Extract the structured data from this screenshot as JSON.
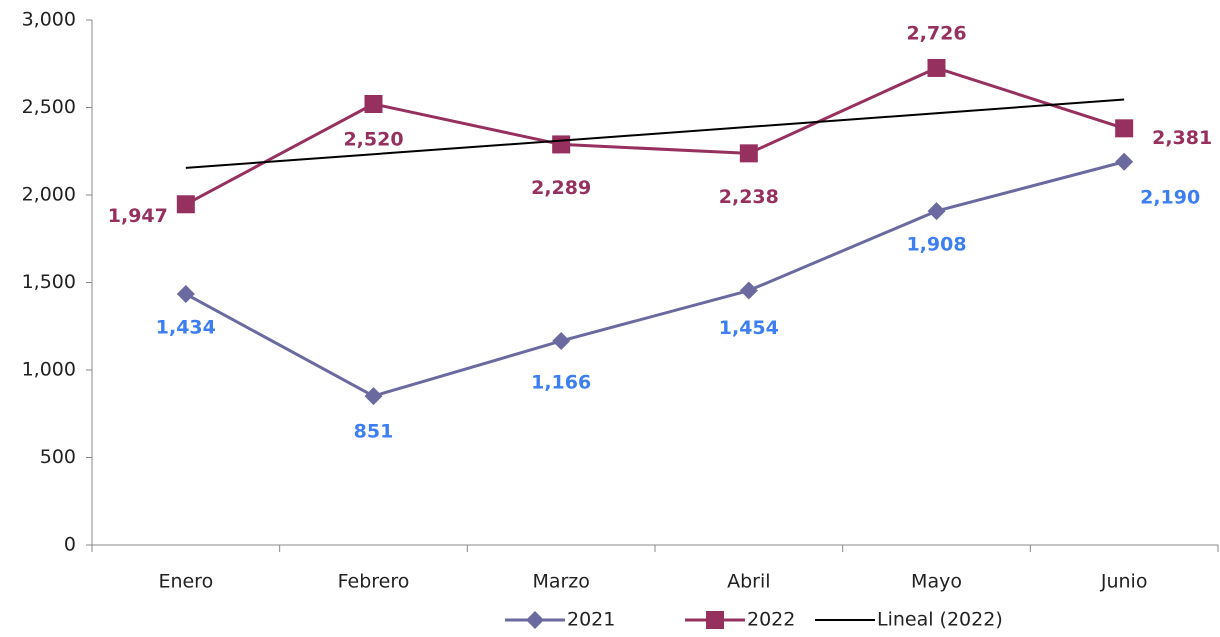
{
  "chart_data": {
    "type": "line",
    "categories": [
      "Enero",
      "Febrero",
      "Marzo",
      "Abril",
      "Mayo",
      "Junio"
    ],
    "series": [
      {
        "name": "2021",
        "color": "#6b6aa0",
        "label_color": "#3d7ef0",
        "marker": "diamond",
        "values": [
          1434,
          851,
          1166,
          1454,
          1908,
          2190
        ],
        "value_labels": [
          "1,434",
          "851",
          "1,166",
          "1,454",
          "1,908",
          "2,190"
        ]
      },
      {
        "name": "2022",
        "color": "#96305f",
        "label_color": "#96305f",
        "marker": "square",
        "values": [
          1947,
          2520,
          2289,
          2238,
          2726,
          2381
        ],
        "value_labels": [
          "1,947",
          "2,520",
          "2,289",
          "2,238",
          "2,726",
          "2,381"
        ]
      },
      {
        "name": "Lineal (2022)",
        "color": "#000000",
        "marker": "none",
        "values": [
          2155,
          2233,
          2311,
          2389,
          2467,
          2546
        ]
      }
    ],
    "ylim": [
      0,
      3000
    ],
    "yticks": [
      {
        "value": 0,
        "label": "0"
      },
      {
        "value": 500,
        "label": "500"
      },
      {
        "value": 1000,
        "label": "1,000"
      },
      {
        "value": 1500,
        "label": "1,500"
      },
      {
        "value": 2000,
        "label": "2,000"
      },
      {
        "value": 2500,
        "label": "2,500"
      },
      {
        "value": 3000,
        "label": "3,000"
      }
    ],
    "grid": false,
    "legend": "bottom"
  }
}
